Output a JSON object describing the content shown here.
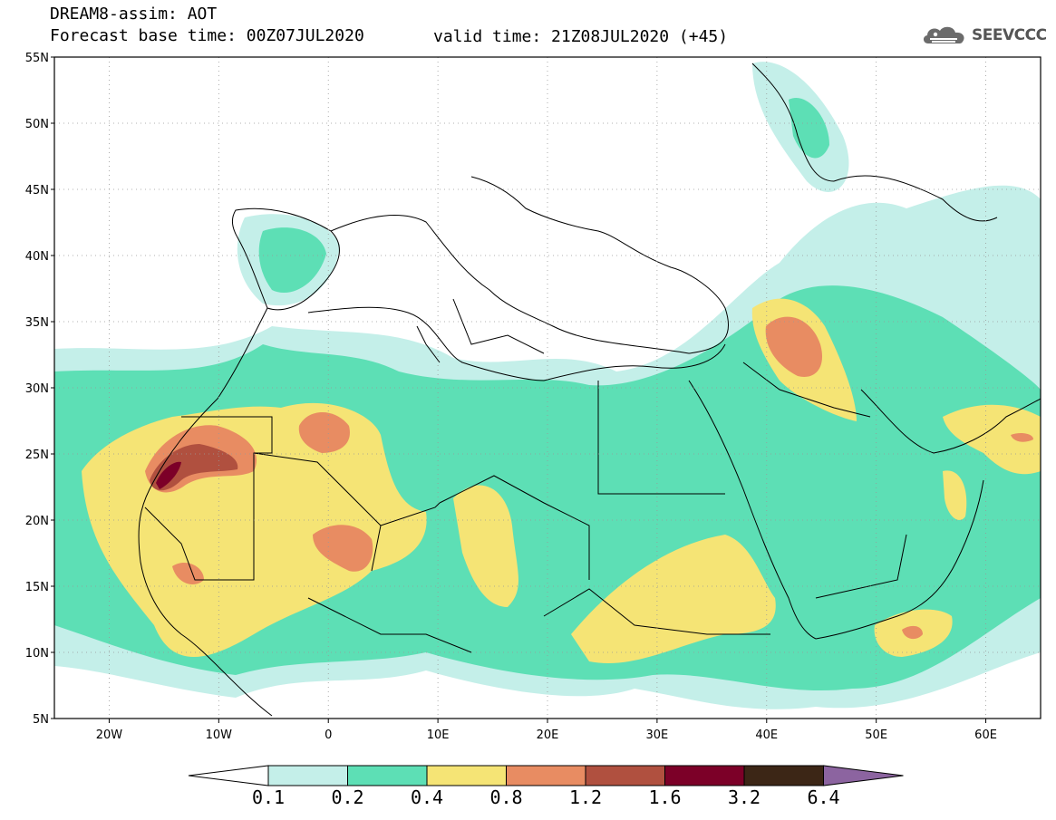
{
  "header": {
    "title": "DREAM8-assim: AOT",
    "base_time": "Forecast base time: 00Z07JUL2020",
    "valid_time": "valid time: 21Z08JUL2020 (+45)"
  },
  "logo": {
    "name": "cloud-logo-icon",
    "text": "SEEVCCC"
  },
  "map": {
    "lat_labels": [
      "55N",
      "50N",
      "45N",
      "40N",
      "35N",
      "30N",
      "25N",
      "20N",
      "15N",
      "10N",
      "5N"
    ],
    "lon_labels": [
      "20W",
      "10W",
      "0",
      "10E",
      "20E",
      "30E",
      "40E",
      "50E",
      "60E"
    ],
    "lat_range": [
      5,
      55
    ],
    "lon_range": [
      -25,
      65
    ],
    "grid": true
  },
  "colorbar": {
    "levels": [
      "0.1",
      "0.2",
      "0.4",
      "0.8",
      "1.2",
      "1.6",
      "3.2",
      "6.4"
    ],
    "colors": [
      "#ffffff",
      "#c4efe9",
      "#5ddfb5",
      "#f5e475",
      "#e88c62",
      "#b0503f",
      "#7c0028",
      "#3c2616",
      "#8c64a0"
    ]
  },
  "chart_data": {
    "type": "heatmap",
    "title": "DREAM8-assim: AOT",
    "xlabel": "",
    "ylabel": "",
    "xlim": [
      -25,
      65
    ],
    "ylim": [
      5,
      55
    ],
    "legend": "bottom",
    "colors": {
      "0.1-0.2": "#c4efe9",
      "0.2-0.4": "#5ddfb5",
      "0.4-0.8": "#f5e475",
      "0.8-1.2": "#e88c62",
      "1.2-1.6": "#b0503f",
      "1.6-3.2": "#7c0028"
    }
  }
}
